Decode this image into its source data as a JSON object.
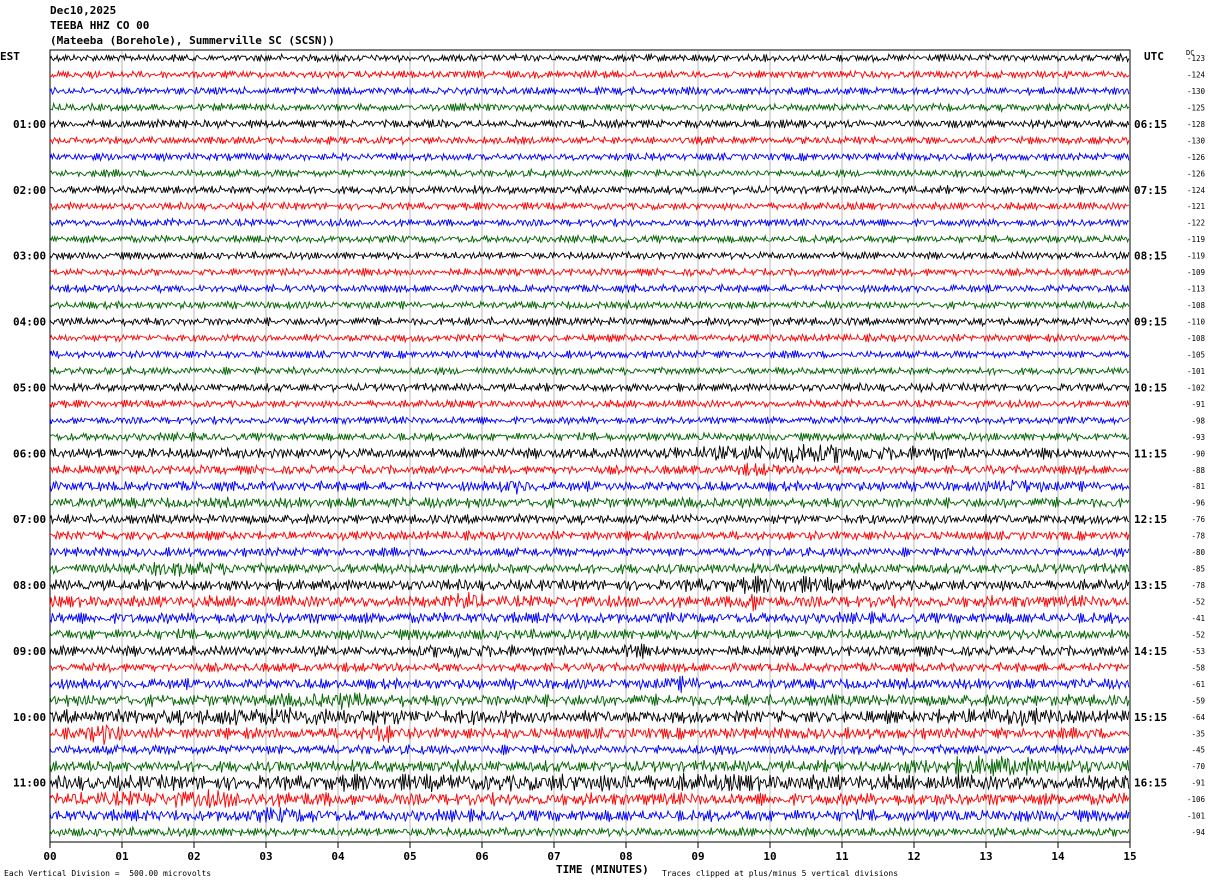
{
  "header": {
    "date": "Dec10,2025",
    "station": "TEEBA HHZ CO 00",
    "location": "(Mateeba (Borehole), Summerville SC (SCSN))"
  },
  "left_tz": "EST",
  "right_tz": "UTC",
  "dc_label": "DC",
  "footer": {
    "scale": "Each Vertical Division =  500.00 microvolts",
    "clip": "Traces clipped at plus/minus 5 vertical divisions",
    "xlabel": "TIME (MINUTES)"
  },
  "chart_data": {
    "type": "line",
    "xlabel": "TIME (MINUTES)",
    "x_ticks": [
      "00",
      "01",
      "02",
      "03",
      "04",
      "05",
      "06",
      "07",
      "08",
      "09",
      "10",
      "11",
      "12",
      "13",
      "14",
      "15"
    ],
    "xlim": [
      0,
      15
    ],
    "grid": true,
    "trace_colors": [
      "#000000",
      "#ff0000",
      "#0000ff",
      "#006400"
    ],
    "num_traces": 48,
    "minutes_per_trace": 15,
    "est_labels": [
      {
        "row": 4,
        "text": "01:00"
      },
      {
        "row": 8,
        "text": "02:00"
      },
      {
        "row": 12,
        "text": "03:00"
      },
      {
        "row": 16,
        "text": "04:00"
      },
      {
        "row": 20,
        "text": "05:00"
      },
      {
        "row": 24,
        "text": "06:00"
      },
      {
        "row": 28,
        "text": "07:00"
      },
      {
        "row": 32,
        "text": "08:00"
      },
      {
        "row": 36,
        "text": "09:00"
      },
      {
        "row": 40,
        "text": "10:00"
      },
      {
        "row": 44,
        "text": "11:00"
      }
    ],
    "utc_labels": [
      {
        "row": 4,
        "text": "06:15"
      },
      {
        "row": 8,
        "text": "07:15"
      },
      {
        "row": 12,
        "text": "08:15"
      },
      {
        "row": 16,
        "text": "09:15"
      },
      {
        "row": 20,
        "text": "10:15"
      },
      {
        "row": 24,
        "text": "11:15"
      },
      {
        "row": 28,
        "text": "12:15"
      },
      {
        "row": 32,
        "text": "13:15"
      },
      {
        "row": 36,
        "text": "14:15"
      },
      {
        "row": 40,
        "text": "15:15"
      },
      {
        "row": 44,
        "text": "16:15"
      }
    ],
    "dc_offsets": [
      "-123",
      "-124",
      "-130",
      "-125",
      "-128",
      "-130",
      "-126",
      "-126",
      "-124",
      "-121",
      "-122",
      "-119",
      "-119",
      "-109",
      "-113",
      "-108",
      "-110",
      "-108",
      "-105",
      "-101",
      "-102",
      "-91",
      "-98",
      "-93",
      "-90",
      "-88",
      "-81",
      "-96",
      "-76",
      "-78",
      "-80",
      "-85",
      "-78",
      "-52",
      "-41",
      "-52",
      "-53",
      "-58",
      "-61",
      "-59",
      "-64",
      "-35",
      "-45",
      "-70",
      "-91",
      "-106",
      "-101",
      "-94"
    ],
    "trace_amplitude": [
      0.5,
      0.5,
      0.5,
      0.5,
      0.55,
      0.5,
      0.5,
      0.5,
      0.55,
      0.5,
      0.5,
      0.5,
      0.5,
      0.5,
      0.5,
      0.5,
      0.55,
      0.5,
      0.5,
      0.5,
      0.55,
      0.5,
      0.5,
      0.55,
      0.7,
      0.6,
      0.65,
      0.7,
      0.65,
      0.6,
      0.6,
      0.7,
      0.75,
      0.8,
      0.75,
      0.7,
      0.7,
      0.6,
      0.7,
      0.8,
      0.85,
      0.75,
      0.65,
      0.8,
      0.9,
      0.85,
      0.8,
      0.6
    ],
    "bursts": [
      {
        "row": 24,
        "start_min": 8.5,
        "end_min": 12.5,
        "gain": 2.2
      },
      {
        "row": 25,
        "start_min": 9.4,
        "end_min": 10.2,
        "gain": 1.6
      },
      {
        "row": 26,
        "start_min": 6.2,
        "end_min": 6.8,
        "gain": 1.8
      },
      {
        "row": 26,
        "start_min": 13.0,
        "end_min": 13.8,
        "gain": 1.8
      },
      {
        "row": 31,
        "start_min": 1.0,
        "end_min": 2.8,
        "gain": 1.6
      },
      {
        "row": 32,
        "start_min": 8.8,
        "end_min": 11.5,
        "gain": 1.7
      },
      {
        "row": 33,
        "start_min": 5.6,
        "end_min": 6.0,
        "gain": 2.2
      },
      {
        "row": 33,
        "start_min": 9.5,
        "end_min": 10.0,
        "gain": 1.8
      },
      {
        "row": 36,
        "start_min": 5.0,
        "end_min": 6.5,
        "gain": 1.6
      },
      {
        "row": 36,
        "start_min": 7.9,
        "end_min": 8.3,
        "gain": 1.8
      },
      {
        "row": 38,
        "start_min": 8.5,
        "end_min": 9.2,
        "gain": 1.6
      },
      {
        "row": 39,
        "start_min": 3.0,
        "end_min": 5.0,
        "gain": 1.5
      },
      {
        "row": 40,
        "start_min": 0.2,
        "end_min": 6.5,
        "gain": 1.6
      },
      {
        "row": 40,
        "start_min": 12.2,
        "end_min": 14.3,
        "gain": 1.6
      },
      {
        "row": 41,
        "start_min": 0.5,
        "end_min": 1.0,
        "gain": 2.3
      },
      {
        "row": 41,
        "start_min": 4.3,
        "end_min": 4.9,
        "gain": 2.0
      },
      {
        "row": 43,
        "start_min": 11.8,
        "end_min": 14.5,
        "gain": 1.9
      },
      {
        "row": 44,
        "start_min": 0.2,
        "end_min": 15.0,
        "gain": 1.4
      },
      {
        "row": 45,
        "start_min": 0.2,
        "end_min": 4.0,
        "gain": 1.5
      },
      {
        "row": 46,
        "start_min": 2.5,
        "end_min": 4.0,
        "gain": 1.5
      }
    ]
  }
}
